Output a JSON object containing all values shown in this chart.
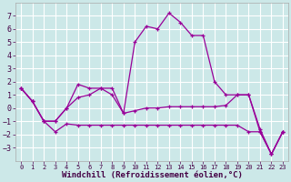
{
  "x": [
    0,
    1,
    2,
    3,
    4,
    5,
    6,
    7,
    8,
    9,
    10,
    11,
    12,
    13,
    14,
    15,
    16,
    17,
    18,
    19,
    20,
    21,
    22,
    23
  ],
  "lineA": [
    1.5,
    0.5,
    -1.0,
    -1.0,
    0.0,
    1.8,
    1.5,
    1.5,
    1.0,
    -0.4,
    5.0,
    6.2,
    6.0,
    7.2,
    6.5,
    5.5,
    5.5,
    2.0,
    1.0,
    1.0,
    1.0,
    -1.8,
    -3.5,
    -1.8
  ],
  "lineB": [
    1.5,
    0.5,
    -1.0,
    -1.0,
    0.0,
    0.8,
    1.0,
    1.5,
    1.5,
    -0.4,
    -0.2,
    0.0,
    0.0,
    0.1,
    0.1,
    0.1,
    0.1,
    0.1,
    0.2,
    1.0,
    1.0,
    -1.6,
    -3.5,
    -1.8
  ],
  "lineC": [
    1.5,
    0.5,
    -1.0,
    -1.8,
    -1.2,
    -1.3,
    -1.3,
    -1.3,
    -1.3,
    -1.3,
    -1.3,
    -1.3,
    -1.3,
    -1.3,
    -1.3,
    -1.3,
    -1.3,
    -1.3,
    -1.3,
    -1.3,
    -1.8,
    -1.8,
    -3.5,
    -1.8
  ],
  "line_color": "#990099",
  "bg_color": "#cce8e8",
  "grid_color": "#aacccc",
  "xlabel": "Windchill (Refroidissement éolien,°C)",
  "ylim": [
    -4,
    8
  ],
  "xlim_min": -0.5,
  "xlim_max": 23.5,
  "yticks": [
    -3,
    -2,
    -1,
    0,
    1,
    2,
    3,
    4,
    5,
    6,
    7
  ],
  "xticks": [
    0,
    1,
    2,
    3,
    4,
    5,
    6,
    7,
    8,
    9,
    10,
    11,
    12,
    13,
    14,
    15,
    16,
    17,
    18,
    19,
    20,
    21,
    22,
    23
  ],
  "figw": 3.2,
  "figh": 2.0,
  "dpi": 100
}
